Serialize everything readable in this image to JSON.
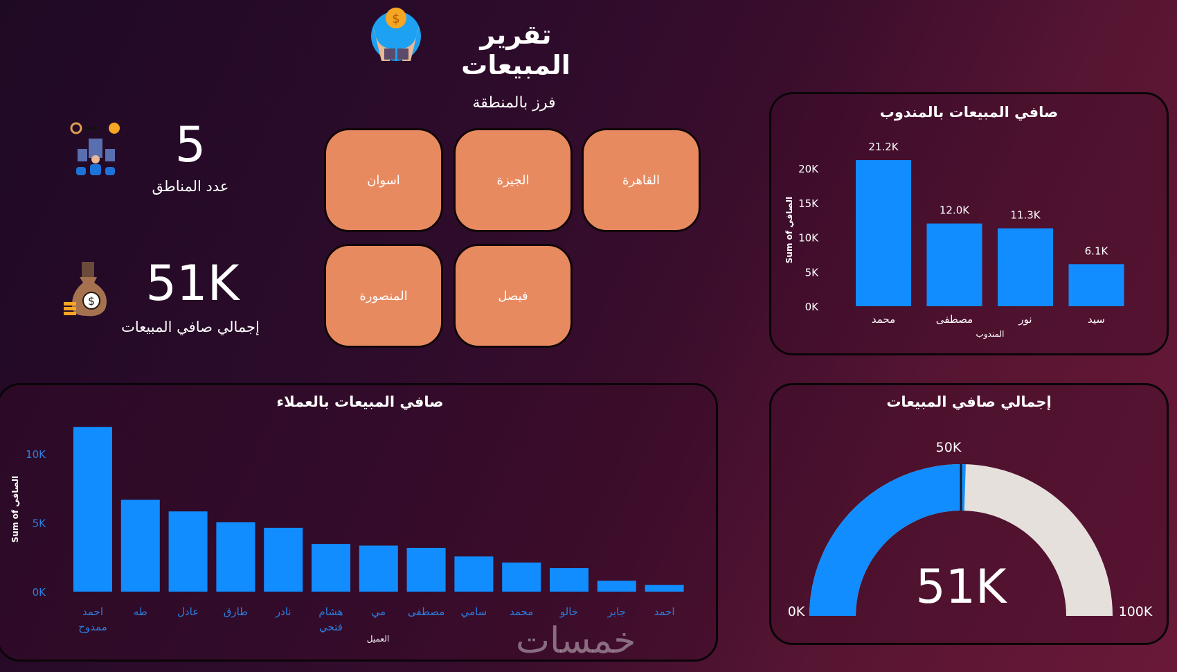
{
  "header": {
    "title": "تقرير المبيعات",
    "logo_icon": "hands-coin-icon"
  },
  "kpis": {
    "regions": {
      "value": "5",
      "label": "عدد المناطق",
      "icon": "regions-people-icon"
    },
    "sales": {
      "value": "51K",
      "label": "إجمالي صافي المبيعات",
      "icon": "money-bag-icon"
    }
  },
  "slicer": {
    "title": "فرز بالمنطقة",
    "options": [
      "القاهرة",
      "الجيزة",
      "اسوان",
      "فيصل",
      "المنصورة"
    ]
  },
  "watermark": "خمسات",
  "chart_data": [
    {
      "type": "bar",
      "title": "صافي المبيعات بالمندوب",
      "xlabel": "المندوب",
      "ylabel": "Sum of الصافي",
      "categories": [
        "محمد",
        "مصطفى",
        "نور",
        "سيد"
      ],
      "values": [
        21200,
        12000,
        11300,
        6100
      ],
      "data_labels": [
        "21.2K",
        "12.0K",
        "11.3K",
        "6.1K"
      ],
      "yticks": [
        "0K",
        "5K",
        "10K",
        "15K",
        "20K"
      ],
      "ylim": [
        0,
        22000
      ],
      "bar_color": "#118dff"
    },
    {
      "type": "bar",
      "title": "صافي المبيعات بالعملاء",
      "xlabel": "العميل",
      "ylabel": "Sum of الصافي",
      "categories": [
        "احمد ممدوح",
        "طه",
        "عادل",
        "طارق",
        "نادر",
        "هشام فتحي",
        "مي",
        "مصطفى",
        "سامي",
        "محمد",
        "خالو",
        "جابر",
        "احمد"
      ],
      "values": [
        11950,
        6660,
        5820,
        5030,
        4630,
        3460,
        3340,
        3170,
        2550,
        2110,
        1710,
        790,
        490
      ],
      "yticks": [
        "0K",
        "5K",
        "10K"
      ],
      "ylim": [
        0,
        12000
      ],
      "bar_color": "#118dff"
    },
    {
      "type": "gauge",
      "title": "إجمالي صافي المبيعات",
      "value": 51000,
      "value_label": "51K",
      "min_label": "0K",
      "max_label": "100K",
      "target_label": "50K",
      "min": 0,
      "max": 100000,
      "target": 50000,
      "fill_color": "#118dff",
      "track_color": "#e6e0dc"
    }
  ]
}
